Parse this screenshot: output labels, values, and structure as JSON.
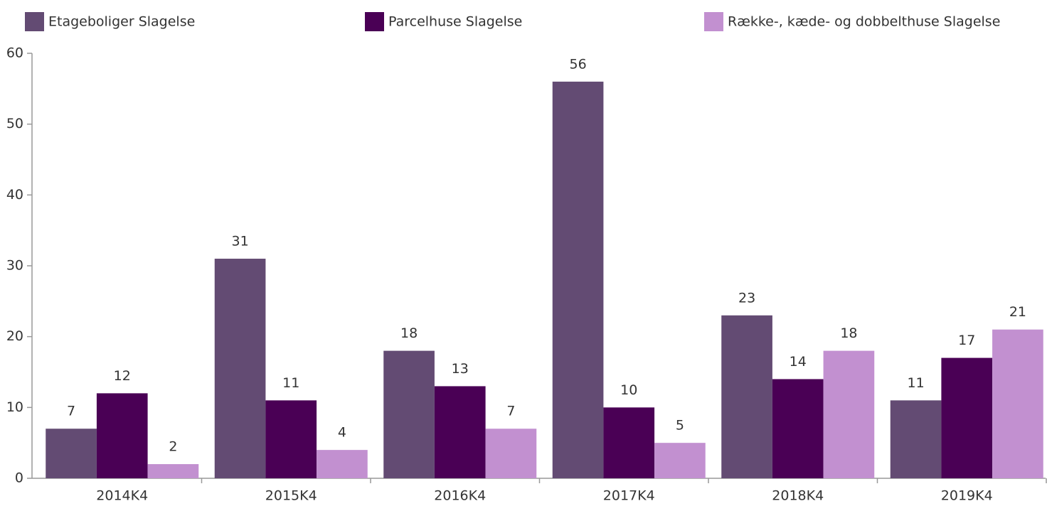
{
  "chart_data": {
    "type": "bar",
    "categories": [
      "2014K4",
      "2015K4",
      "2016K4",
      "2017K4",
      "2018K4",
      "2019K4"
    ],
    "series": [
      {
        "name": "Etageboliger Slagelse",
        "color": "#634b73",
        "values": [
          7,
          31,
          18,
          56,
          23,
          11
        ]
      },
      {
        "name": "Parcelhuse Slagelse",
        "color": "#4a0055",
        "values": [
          12,
          11,
          13,
          10,
          14,
          17
        ]
      },
      {
        "name": "Række-, kæde- og dobbelthuse Slagelse",
        "color": "#c290d0",
        "values": [
          2,
          4,
          7,
          5,
          18,
          21
        ]
      }
    ],
    "ylim": [
      0,
      60
    ],
    "yticks": [
      0,
      10,
      20,
      30,
      40,
      50,
      60
    ],
    "legend": "top",
    "grid": false,
    "data_labels": true
  }
}
